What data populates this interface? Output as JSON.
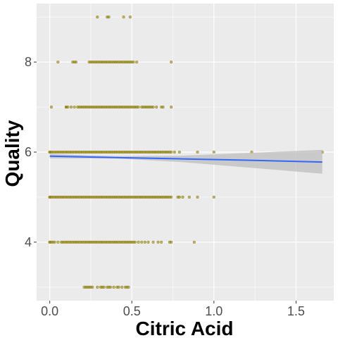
{
  "chart_data": {
    "type": "scatter",
    "title": "",
    "xlabel": "Citric Acid",
    "ylabel": "Quality",
    "xlim": [
      -0.08,
      1.73
    ],
    "ylim": [
      2.7,
      9.3
    ],
    "x_ticks": [
      0.0,
      0.5,
      1.0,
      1.5
    ],
    "x_tick_labels": [
      "0.0",
      "0.5",
      "1.0",
      "1.5"
    ],
    "y_ticks": [
      4,
      6,
      8
    ],
    "y_tick_labels": [
      "4",
      "6",
      "8"
    ],
    "grid": true,
    "legend": "none",
    "point_color": "#8B7A00",
    "line_color": "#3366FF",
    "band_color": "#BDBDBD",
    "panel_background": "#EBEBEB",
    "points_by_quality": [
      {
        "quality": 9,
        "x_values": [
          0.29,
          0.35,
          0.36,
          0.45,
          0.49
        ]
      },
      {
        "quality": 8,
        "x_values": [
          0.05,
          0.14,
          0.15,
          0.16,
          0.24,
          0.25,
          0.26,
          0.27,
          0.28,
          0.29,
          0.3,
          0.31,
          0.32,
          0.33,
          0.34,
          0.35,
          0.36,
          0.37,
          0.38,
          0.39,
          0.4,
          0.41,
          0.42,
          0.43,
          0.44,
          0.45,
          0.46,
          0.47,
          0.48,
          0.49,
          0.5,
          0.51,
          0.53,
          0.74
        ]
      },
      {
        "quality": 7,
        "x_values": [
          0.01,
          0.1,
          0.1,
          0.11,
          0.13,
          0.15,
          0.17,
          0.18,
          0.19,
          0.2,
          0.21,
          0.22,
          0.23,
          0.24,
          0.25,
          0.26,
          0.27,
          0.28,
          0.29,
          0.3,
          0.31,
          0.32,
          0.33,
          0.34,
          0.35,
          0.36,
          0.37,
          0.38,
          0.39,
          0.4,
          0.41,
          0.42,
          0.43,
          0.44,
          0.45,
          0.46,
          0.47,
          0.48,
          0.49,
          0.5,
          0.51,
          0.52,
          0.53,
          0.54,
          0.56,
          0.57,
          0.58,
          0.59,
          0.6,
          0.61,
          0.62,
          0.63,
          0.65,
          0.68,
          0.69,
          0.74
        ]
      },
      {
        "quality": 6,
        "x_values": [
          0.0,
          0.0,
          0.01,
          0.02,
          0.03,
          0.04,
          0.05,
          0.06,
          0.07,
          0.08,
          0.09,
          0.1,
          0.11,
          0.12,
          0.13,
          0.14,
          0.15,
          0.16,
          0.17,
          0.18,
          0.19,
          0.2,
          0.21,
          0.22,
          0.23,
          0.24,
          0.25,
          0.26,
          0.27,
          0.28,
          0.29,
          0.3,
          0.31,
          0.32,
          0.33,
          0.34,
          0.35,
          0.36,
          0.37,
          0.38,
          0.39,
          0.4,
          0.41,
          0.42,
          0.43,
          0.44,
          0.45,
          0.46,
          0.47,
          0.48,
          0.49,
          0.5,
          0.51,
          0.52,
          0.53,
          0.54,
          0.55,
          0.56,
          0.57,
          0.58,
          0.59,
          0.6,
          0.61,
          0.62,
          0.63,
          0.64,
          0.65,
          0.66,
          0.67,
          0.68,
          0.69,
          0.7,
          0.71,
          0.72,
          0.73,
          0.74,
          0.76,
          0.79,
          0.9,
          1.0,
          1.23,
          1.66
        ]
      },
      {
        "quality": 5,
        "x_values": [
          0.0,
          0.0,
          0.01,
          0.02,
          0.03,
          0.04,
          0.05,
          0.06,
          0.07,
          0.08,
          0.09,
          0.1,
          0.11,
          0.12,
          0.13,
          0.14,
          0.15,
          0.16,
          0.17,
          0.18,
          0.19,
          0.2,
          0.21,
          0.22,
          0.23,
          0.24,
          0.25,
          0.26,
          0.27,
          0.28,
          0.29,
          0.3,
          0.31,
          0.32,
          0.33,
          0.34,
          0.35,
          0.36,
          0.37,
          0.38,
          0.39,
          0.4,
          0.41,
          0.42,
          0.43,
          0.44,
          0.45,
          0.46,
          0.47,
          0.48,
          0.49,
          0.5,
          0.51,
          0.52,
          0.53,
          0.54,
          0.55,
          0.56,
          0.57,
          0.58,
          0.59,
          0.6,
          0.61,
          0.62,
          0.63,
          0.64,
          0.65,
          0.66,
          0.67,
          0.68,
          0.69,
          0.7,
          0.71,
          0.72,
          0.73,
          0.74,
          0.78,
          0.79,
          0.81,
          0.85,
          0.9,
          1.0
        ]
      },
      {
        "quality": 4,
        "x_values": [
          0.0,
          0.0,
          0.01,
          0.02,
          0.03,
          0.05,
          0.07,
          0.08,
          0.09,
          0.1,
          0.11,
          0.12,
          0.13,
          0.14,
          0.15,
          0.16,
          0.17,
          0.18,
          0.19,
          0.2,
          0.21,
          0.22,
          0.23,
          0.24,
          0.25,
          0.26,
          0.27,
          0.28,
          0.29,
          0.3,
          0.31,
          0.32,
          0.33,
          0.34,
          0.35,
          0.36,
          0.37,
          0.38,
          0.39,
          0.4,
          0.41,
          0.42,
          0.43,
          0.44,
          0.45,
          0.46,
          0.47,
          0.48,
          0.49,
          0.5,
          0.51,
          0.52,
          0.54,
          0.56,
          0.58,
          0.6,
          0.63,
          0.66,
          0.68,
          0.73,
          0.74,
          0.88
        ]
      },
      {
        "quality": 3,
        "x_values": [
          0.21,
          0.22,
          0.23,
          0.24,
          0.25,
          0.26,
          0.29,
          0.31,
          0.32,
          0.33,
          0.35,
          0.36,
          0.37,
          0.39,
          0.41,
          0.42,
          0.44,
          0.46,
          0.47,
          0.48
        ]
      }
    ],
    "smooth_line": {
      "method": "lm",
      "x": [
        0.0,
        0.4,
        0.8,
        1.2,
        1.66
      ],
      "y": [
        5.91,
        5.88,
        5.85,
        5.82,
        5.78
      ],
      "se_lower": [
        5.86,
        5.86,
        5.78,
        5.66,
        5.52
      ],
      "se_upper": [
        5.96,
        5.91,
        5.92,
        5.98,
        6.05
      ]
    }
  }
}
